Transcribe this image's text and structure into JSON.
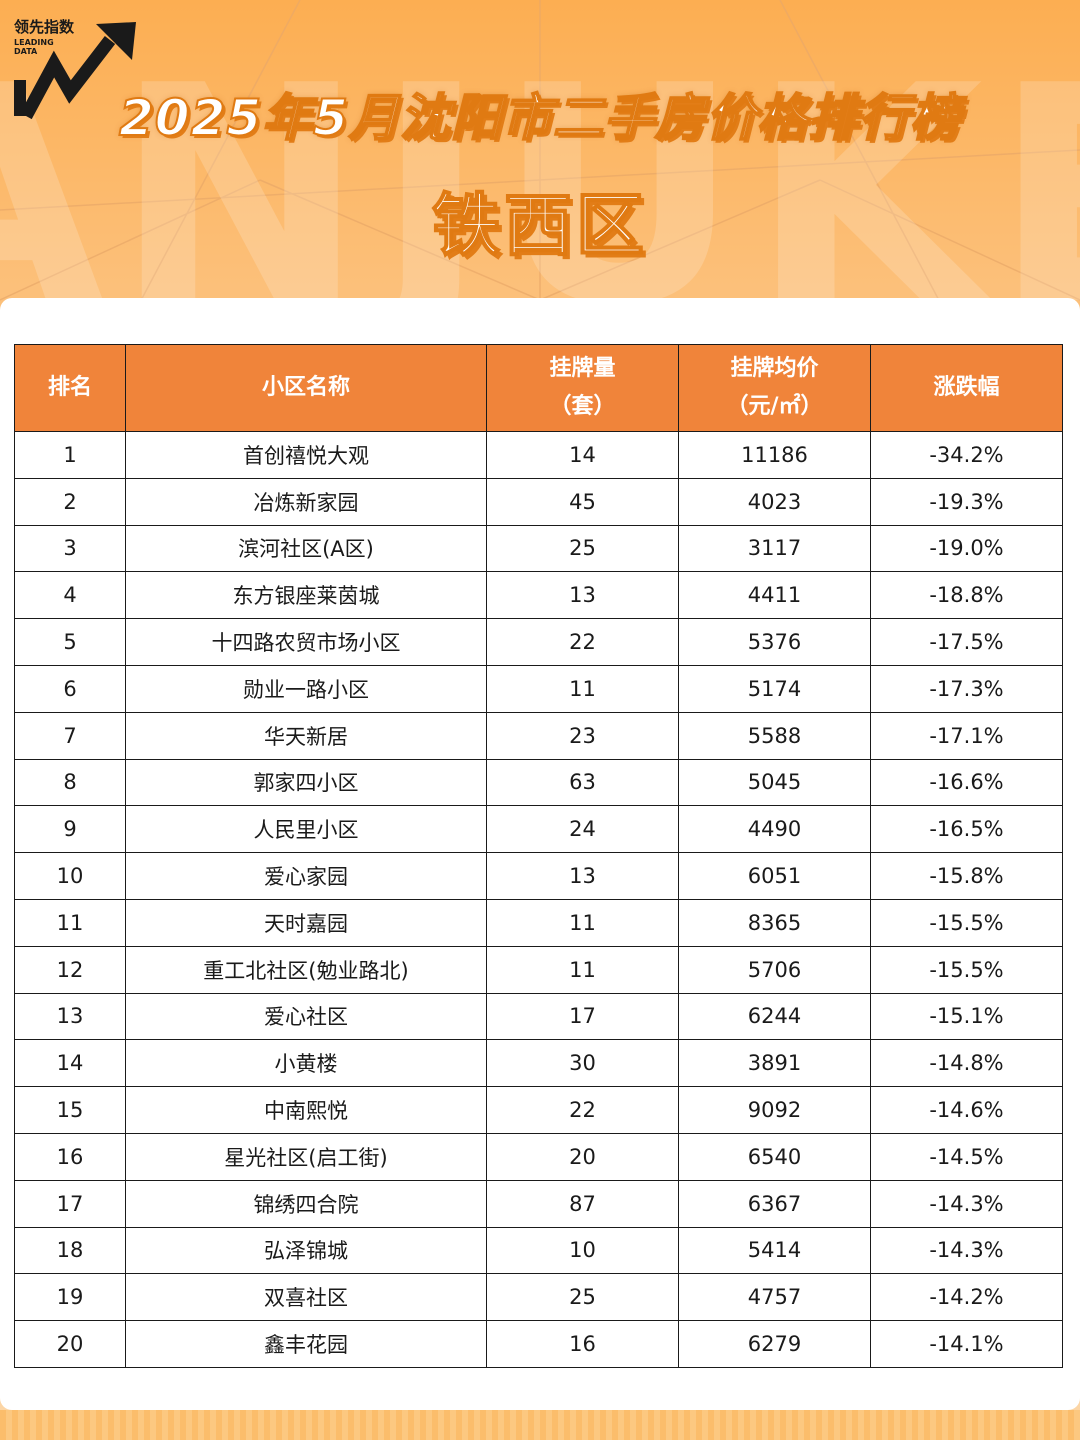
{
  "brand": {
    "logo_cn": "领先指数",
    "logo_en_line1": "LEADING",
    "logo_en_line2": "DATA",
    "watermark": "ANJUKE"
  },
  "title": "2025年5月沈阳市二手房价格排行榜",
  "subtitle": "铁西区",
  "colors": {
    "header_bg": "#f0843a",
    "accent_orange": "#e07a12",
    "background": "#fcae52"
  },
  "table": {
    "headers": {
      "rank": "排名",
      "name": "小区名称",
      "listings_line1": "挂牌量",
      "listings_line2": "（套）",
      "price_line1": "挂牌均价",
      "price_line2": "（元/㎡）",
      "change": "涨跌幅"
    },
    "rows": [
      {
        "rank": "1",
        "name": "首创禧悦大观",
        "listings": "14",
        "price": "11186",
        "change": "-34.2%"
      },
      {
        "rank": "2",
        "name": "冶炼新家园",
        "listings": "45",
        "price": "4023",
        "change": "-19.3%"
      },
      {
        "rank": "3",
        "name": "滨河社区(A区)",
        "listings": "25",
        "price": "3117",
        "change": "-19.0%"
      },
      {
        "rank": "4",
        "name": "东方银座莱茵城",
        "listings": "13",
        "price": "4411",
        "change": "-18.8%"
      },
      {
        "rank": "5",
        "name": "十四路农贸市场小区",
        "listings": "22",
        "price": "5376",
        "change": "-17.5%"
      },
      {
        "rank": "6",
        "name": "勋业一路小区",
        "listings": "11",
        "price": "5174",
        "change": "-17.3%"
      },
      {
        "rank": "7",
        "name": "华天新居",
        "listings": "23",
        "price": "5588",
        "change": "-17.1%"
      },
      {
        "rank": "8",
        "name": "郭家四小区",
        "listings": "63",
        "price": "5045",
        "change": "-16.6%"
      },
      {
        "rank": "9",
        "name": "人民里小区",
        "listings": "24",
        "price": "4490",
        "change": "-16.5%"
      },
      {
        "rank": "10",
        "name": "爱心家园",
        "listings": "13",
        "price": "6051",
        "change": "-15.8%"
      },
      {
        "rank": "11",
        "name": "天时嘉园",
        "listings": "11",
        "price": "8365",
        "change": "-15.5%"
      },
      {
        "rank": "12",
        "name": "重工北社区(勉业路北)",
        "listings": "11",
        "price": "5706",
        "change": "-15.5%"
      },
      {
        "rank": "13",
        "name": "爱心社区",
        "listings": "17",
        "price": "6244",
        "change": "-15.1%"
      },
      {
        "rank": "14",
        "name": "小黄楼",
        "listings": "30",
        "price": "3891",
        "change": "-14.8%"
      },
      {
        "rank": "15",
        "name": "中南熙悦",
        "listings": "22",
        "price": "9092",
        "change": "-14.6%"
      },
      {
        "rank": "16",
        "name": "星光社区(启工街)",
        "listings": "20",
        "price": "6540",
        "change": "-14.5%"
      },
      {
        "rank": "17",
        "name": "锦绣四合院",
        "listings": "87",
        "price": "6367",
        "change": "-14.3%"
      },
      {
        "rank": "18",
        "name": "弘泽锦城",
        "listings": "10",
        "price": "5414",
        "change": "-14.3%"
      },
      {
        "rank": "19",
        "name": "双喜社区",
        "listings": "25",
        "price": "4757",
        "change": "-14.2%"
      },
      {
        "rank": "20",
        "name": "鑫丰花园",
        "listings": "16",
        "price": "6279",
        "change": "-14.1%"
      }
    ]
  }
}
